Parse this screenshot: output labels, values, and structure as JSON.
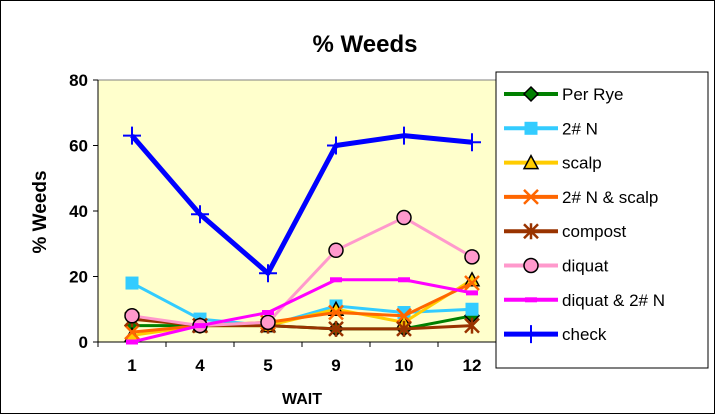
{
  "chart_data": {
    "type": "line",
    "title": "% Weeds",
    "xlabel": "WAIT",
    "ylabel": "% Weeds",
    "categories": [
      "1",
      "4",
      "5",
      "9",
      "10",
      "12"
    ],
    "ylim": [
      0,
      80
    ],
    "yticks": [
      0,
      20,
      40,
      60,
      80
    ],
    "grid": false,
    "legend_position": "right",
    "plot_background": "#FFFFCC",
    "series": [
      {
        "name": "Per Rye",
        "values": [
          5,
          5,
          5,
          4,
          4,
          8
        ],
        "color": "#008000",
        "marker": "diamond"
      },
      {
        "name": "2# N",
        "values": [
          18,
          7,
          5,
          11,
          9,
          10
        ],
        "color": "#33CCFF",
        "marker": "square"
      },
      {
        "name": "scalp",
        "values": [
          2,
          5,
          5,
          10,
          6,
          19
        ],
        "color": "#FFCC00",
        "marker": "triangle"
      },
      {
        "name": "2# N & scalp",
        "values": [
          3,
          5,
          6,
          9,
          8,
          18
        ],
        "color": "#FF6600",
        "marker": "x"
      },
      {
        "name": "compost",
        "values": [
          7,
          5,
          5,
          4,
          4,
          5
        ],
        "color": "#993300",
        "marker": "star"
      },
      {
        "name": "diquat",
        "values": [
          8,
          5,
          6,
          28,
          38,
          26
        ],
        "color": "#FF99CC",
        "marker": "circle"
      },
      {
        "name": "diquat & 2# N",
        "values": [
          0,
          5,
          9,
          19,
          19,
          15
        ],
        "color": "#FF00FF",
        "marker": "dash"
      },
      {
        "name": "check",
        "values": [
          63,
          39,
          21,
          60,
          63,
          61
        ],
        "color": "#0000FF",
        "marker": "plus"
      }
    ]
  }
}
